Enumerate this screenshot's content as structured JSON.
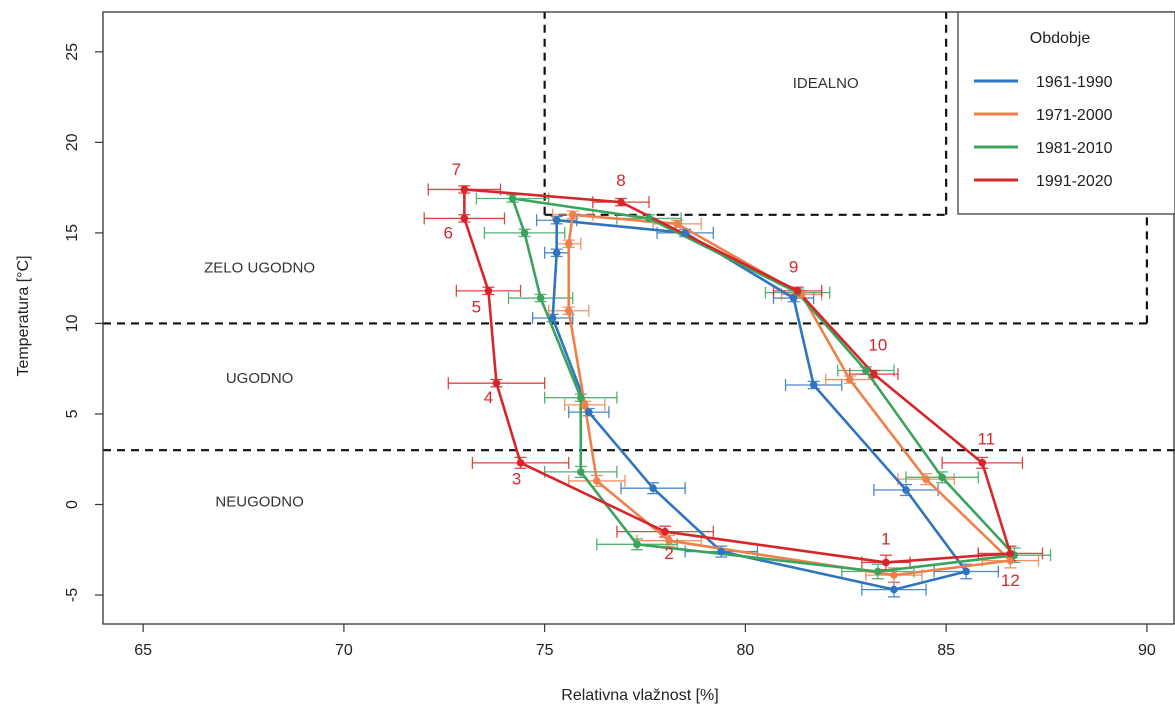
{
  "chart_data": {
    "type": "line",
    "xlabel": "Relativna vlažnost [%]",
    "ylabel": "Temperatura [°C]",
    "xlim": [
      64,
      90.7
    ],
    "ylim": [
      -6.6,
      27.2
    ],
    "xticks": [
      65,
      70,
      75,
      80,
      85,
      90
    ],
    "yticks": [
      -5,
      0,
      5,
      10,
      15,
      20,
      25
    ],
    "grid": false,
    "legend": {
      "title": "Obdobje",
      "placement": "top-right"
    },
    "zones": [
      {
        "label": "IDEALNO",
        "x": 82,
        "y": 23
      },
      {
        "label": "ZELO UGODNO",
        "x": 67.9,
        "y": 12.8
      },
      {
        "label": "UGODNO",
        "x": 67.9,
        "y": 6.7
      },
      {
        "label": "NEUGODNO",
        "x": 67.9,
        "y": -0.1
      }
    ],
    "boundaries": {
      "hlines": [
        {
          "y": 3,
          "x0": 64,
          "x1": 90.7
        },
        {
          "y": 10,
          "x0": 64,
          "x1": 90
        },
        {
          "y": 16,
          "x0": 75,
          "x1": 85
        }
      ],
      "vlines": [
        {
          "x": 75,
          "y0": 16,
          "y1": 27.2
        },
        {
          "x": 85,
          "y0": 16,
          "y1": 27.2
        },
        {
          "x": 90,
          "y0": 10,
          "y1": 16
        }
      ]
    },
    "month_labels": [
      {
        "label": "1",
        "x": 83.5,
        "y": -2.2
      },
      {
        "label": "2",
        "x": 78.1,
        "y": -3.0
      },
      {
        "label": "3",
        "x": 74.3,
        "y": 1.1
      },
      {
        "label": "4",
        "x": 73.6,
        "y": 5.6
      },
      {
        "label": "5",
        "x": 73.3,
        "y": 10.6
      },
      {
        "label": "6",
        "x": 72.6,
        "y": 14.7
      },
      {
        "label": "7",
        "x": 72.8,
        "y": 18.2
      },
      {
        "label": "8",
        "x": 76.9,
        "y": 17.6
      },
      {
        "label": "9",
        "x": 81.2,
        "y": 12.8
      },
      {
        "label": "10",
        "x": 83.3,
        "y": 8.5
      },
      {
        "label": "11",
        "x": 86.0,
        "y": 3.3
      },
      {
        "label": "12",
        "x": 86.6,
        "y": -4.5
      }
    ],
    "series": [
      {
        "name": "1961-1990",
        "color": "#2f74c0",
        "x": [
          83.7,
          79.4,
          77.7,
          76.1,
          75.2,
          75.3,
          75.3,
          78.5,
          81.2,
          81.7,
          84.0,
          85.5
        ],
        "y": [
          -4.7,
          -2.6,
          0.9,
          5.1,
          10.3,
          13.9,
          15.7,
          15.0,
          11.4,
          6.6,
          0.8,
          -3.7
        ],
        "xerr": [
          0.8,
          0.9,
          0.8,
          0.5,
          0.5,
          0.3,
          0.5,
          0.7,
          0.5,
          0.7,
          0.8,
          0.8
        ],
        "yerr": [
          0.4,
          0.3,
          0.3,
          0.2,
          0.2,
          0.2,
          0.2,
          0.2,
          0.2,
          0.2,
          0.3,
          0.4
        ]
      },
      {
        "name": "1971-2000",
        "color": "#f0804a",
        "x": [
          83.7,
          78.1,
          76.3,
          76.0,
          75.6,
          75.6,
          75.7,
          78.3,
          81.4,
          82.6,
          84.5,
          86.6
        ],
        "y": [
          -3.9,
          -2.0,
          1.3,
          5.5,
          10.7,
          14.4,
          16.0,
          15.5,
          11.6,
          6.9,
          1.4,
          -3.1
        ],
        "xerr": [
          0.7,
          0.8,
          0.7,
          0.5,
          0.5,
          0.3,
          0.5,
          0.6,
          0.5,
          0.6,
          0.7,
          0.7
        ],
        "yerr": [
          0.4,
          0.3,
          0.3,
          0.2,
          0.2,
          0.2,
          0.2,
          0.2,
          0.2,
          0.2,
          0.3,
          0.4
        ]
      },
      {
        "name": "1981-2010",
        "color": "#3aa45c",
        "x": [
          83.3,
          77.3,
          75.9,
          75.9,
          74.9,
          74.5,
          74.2,
          77.6,
          81.3,
          83.0,
          84.9,
          86.7
        ],
        "y": [
          -3.7,
          -2.2,
          1.8,
          5.9,
          11.4,
          15.0,
          16.9,
          15.8,
          11.7,
          7.4,
          1.5,
          -2.8
        ],
        "xerr": [
          0.9,
          1.0,
          0.9,
          0.9,
          0.8,
          1.0,
          0.9,
          0.8,
          0.8,
          0.7,
          0.9,
          0.9
        ],
        "yerr": [
          0.4,
          0.3,
          0.3,
          0.2,
          0.2,
          0.2,
          0.2,
          0.2,
          0.2,
          0.2,
          0.3,
          0.4
        ]
      },
      {
        "name": "1991-2020",
        "color": "#d7262a",
        "x": [
          83.5,
          78.0,
          74.4,
          73.8,
          73.6,
          73.0,
          73.0,
          76.9,
          81.3,
          83.2,
          85.9,
          86.6
        ],
        "y": [
          -3.2,
          -1.5,
          2.3,
          6.7,
          11.8,
          15.8,
          17.4,
          16.7,
          11.8,
          7.2,
          2.3,
          -2.7
        ],
        "xerr": [
          0.6,
          1.2,
          1.2,
          1.2,
          0.8,
          1.0,
          0.9,
          0.7,
          0.6,
          0.6,
          1.0,
          0.8
        ],
        "yerr": [
          0.4,
          0.3,
          0.3,
          0.2,
          0.2,
          0.2,
          0.2,
          0.2,
          0.2,
          0.2,
          0.3,
          0.4
        ]
      }
    ]
  }
}
